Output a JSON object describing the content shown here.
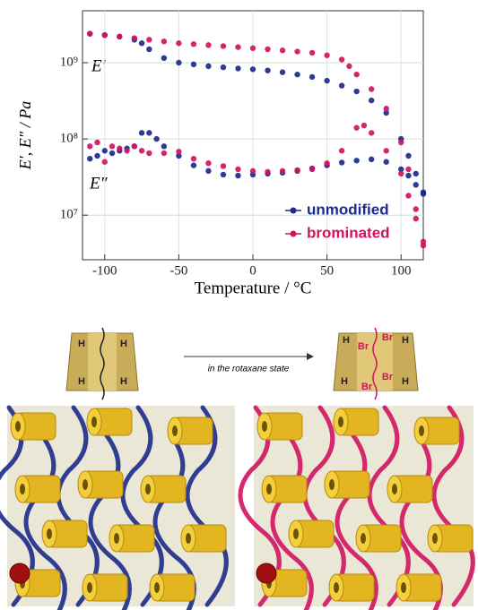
{
  "chart_data": {
    "type": "scatter",
    "xlabel": "Temperature  / °C",
    "ylabel": "E′, E″ / Pa",
    "annotations": [
      "E′",
      "E″"
    ],
    "xlim": [
      -115,
      115
    ],
    "xticks": [
      -100,
      -50,
      0,
      50,
      100
    ],
    "ylim": [
      2600000,
      4800000000
    ],
    "log_y": true,
    "grid": true,
    "legend": "lower right",
    "yticks": [
      {
        "value": 10000000,
        "label": "10⁷"
      },
      {
        "value": 100000000,
        "label": "10⁸"
      },
      {
        "value": 1000000000,
        "label": "10⁹"
      }
    ],
    "series": [
      {
        "name": "unmodified",
        "color": "#1c2a8c",
        "storage": {
          "x": [
            -110,
            -100,
            -90,
            -80,
            -75,
            -70,
            -60,
            -50,
            -40,
            -30,
            -20,
            -10,
            0,
            10,
            20,
            30,
            40,
            50,
            60,
            70,
            80,
            90,
            100,
            105,
            110,
            115
          ],
          "values": [
            2400000000,
            2300000000,
            2200000000,
            2000000000,
            1800000000,
            1500000000,
            1150000000,
            1000000000,
            950000000,
            900000000,
            870000000,
            840000000,
            820000000,
            790000000,
            750000000,
            700000000,
            650000000,
            580000000,
            500000000,
            420000000,
            320000000,
            220000000,
            100000000,
            60000000,
            35000000,
            20000000
          ]
        },
        "loss": {
          "x": [
            -110,
            -105,
            -100,
            -95,
            -90,
            -85,
            -80,
            -75,
            -70,
            -65,
            -60,
            -50,
            -40,
            -30,
            -20,
            -10,
            0,
            10,
            20,
            30,
            40,
            50,
            60,
            70,
            80,
            90,
            100,
            105,
            110,
            115
          ],
          "values": [
            55000000,
            60000000,
            70000000,
            65000000,
            70000000,
            75000000,
            80000000,
            120000000,
            120000000,
            100000000,
            80000000,
            60000000,
            45000000,
            38000000,
            34000000,
            33000000,
            34000000,
            35000000,
            36000000,
            38000000,
            41000000,
            45000000,
            49000000,
            52000000,
            54000000,
            50000000,
            40000000,
            33000000,
            25000000,
            19000000
          ]
        }
      },
      {
        "name": "brominated",
        "color": "#d0135f",
        "storage": {
          "x": [
            -110,
            -100,
            -90,
            -80,
            -70,
            -60,
            -50,
            -40,
            -30,
            -20,
            -10,
            0,
            10,
            20,
            30,
            40,
            50,
            60,
            65,
            70,
            80,
            90,
            100,
            105,
            110,
            115
          ],
          "values": [
            2400000000,
            2300000000,
            2200000000,
            2100000000,
            2000000000,
            1900000000,
            1800000000,
            1750000000,
            1700000000,
            1650000000,
            1600000000,
            1550000000,
            1500000000,
            1450000000,
            1400000000,
            1350000000,
            1250000000,
            1100000000,
            900000000,
            700000000,
            450000000,
            250000000,
            90000000,
            40000000,
            12000000,
            4500000
          ]
        },
        "loss": {
          "x": [
            -110,
            -105,
            -100,
            -95,
            -90,
            -85,
            -80,
            -75,
            -70,
            -60,
            -50,
            -40,
            -30,
            -20,
            -10,
            0,
            10,
            20,
            30,
            40,
            50,
            60,
            70,
            75,
            80,
            90,
            100,
            105,
            110,
            115
          ],
          "values": [
            80000000,
            90000000,
            50000000,
            80000000,
            75000000,
            70000000,
            80000000,
            70000000,
            65000000,
            65000000,
            68000000,
            55000000,
            48000000,
            44000000,
            40000000,
            38000000,
            37000000,
            38000000,
            39000000,
            40000000,
            48000000,
            70000000,
            140000000,
            150000000,
            120000000,
            70000000,
            35000000,
            18000000,
            9000000,
            4000000
          ]
        }
      }
    ]
  },
  "scheme": {
    "left": [
      "H",
      "H",
      "H",
      "H"
    ],
    "arrow": "in the rotaxane state",
    "right": [
      "H",
      "Br",
      "Br",
      "H",
      "H",
      "Br",
      "Br",
      "H"
    ]
  }
}
